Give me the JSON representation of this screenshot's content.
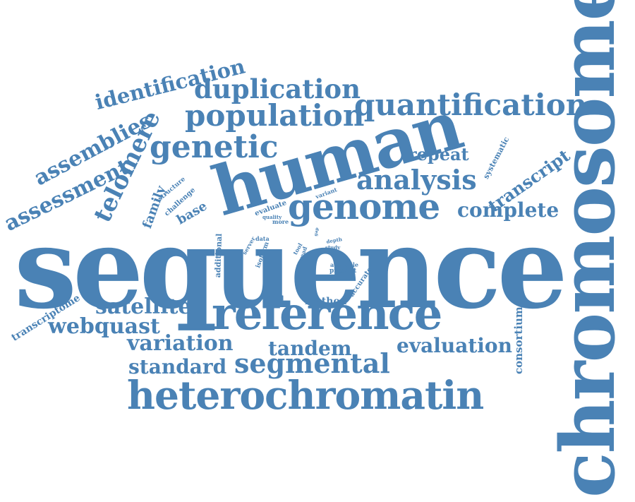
{
  "color": "#4a82b5",
  "words": [
    "sequence",
    "chromosome",
    "human",
    "reference",
    "heterochromatin",
    "genome",
    "quantification",
    "population",
    "duplication",
    "genetic",
    "analysis",
    "identification",
    "assemblies",
    "assessment",
    "telomere",
    "segmental",
    "variation",
    "evaluation",
    "webquast",
    "satellite",
    "tandem",
    "standard",
    "complete",
    "transcript",
    "repeat",
    "transcriptome",
    "consortium",
    "family",
    "base",
    "method",
    "structure",
    "challenge",
    "systematic",
    "evaluate",
    "variant",
    "quality",
    "more",
    "server",
    "data",
    "isoform",
    "additional",
    "tool",
    "read",
    "depth",
    "study",
    "available",
    "present",
    "accurate",
    "gap"
  ]
}
